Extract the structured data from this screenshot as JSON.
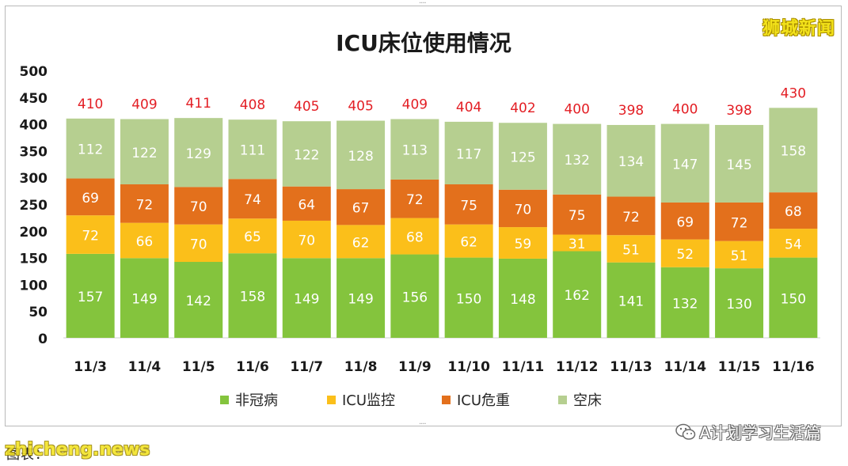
{
  "brand": "狮城新闻",
  "watermark": {
    "wechat_label": "A计划学习生活篇",
    "source_label": "图表：",
    "site_label": "zhicheng.news"
  },
  "chart_data": {
    "type": "bar",
    "stacked": true,
    "title": "ICU床位使用情况",
    "xlabel": "",
    "ylabel": "",
    "ylim": [
      0,
      500
    ],
    "yticks": [
      0,
      50,
      100,
      150,
      200,
      250,
      300,
      350,
      400,
      450,
      500
    ],
    "grid": false,
    "legend_position": "bottom",
    "categories": [
      "11/3",
      "11/4",
      "11/5",
      "11/6",
      "11/7",
      "11/8",
      "11/9",
      "11/10",
      "11/11",
      "11/12",
      "11/13",
      "11/14",
      "11/15",
      "11/16"
    ],
    "series": [
      {
        "name": "非冠病",
        "color": "#84c43d",
        "values": [
          157,
          149,
          142,
          158,
          149,
          149,
          156,
          150,
          148,
          162,
          141,
          132,
          130,
          150
        ]
      },
      {
        "name": "ICU监控",
        "color": "#fbbf1a",
        "values": [
          72,
          66,
          70,
          65,
          70,
          62,
          68,
          62,
          59,
          31,
          51,
          52,
          51,
          54
        ]
      },
      {
        "name": "ICU危重",
        "color": "#e3701c",
        "values": [
          69,
          72,
          70,
          74,
          64,
          67,
          72,
          75,
          70,
          75,
          72,
          69,
          72,
          68
        ]
      },
      {
        "name": "空床",
        "color": "#b6cf90",
        "values": [
          112,
          122,
          129,
          111,
          122,
          128,
          113,
          117,
          125,
          132,
          134,
          147,
          145,
          158
        ]
      }
    ],
    "totals": [
      410,
      409,
      411,
      408,
      405,
      405,
      409,
      404,
      402,
      400,
      398,
      400,
      398,
      430
    ],
    "total_label_color": "#e31e24"
  }
}
